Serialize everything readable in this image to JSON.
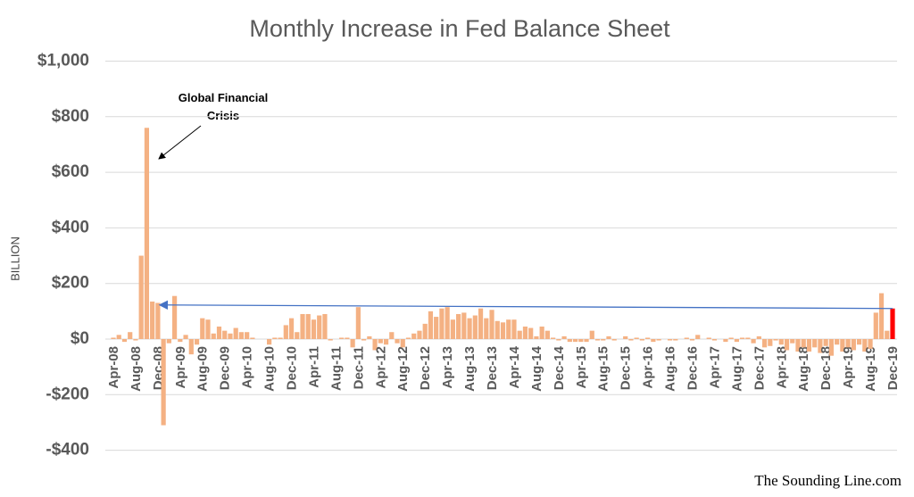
{
  "chart_data": {
    "type": "bar",
    "title": "Monthly Increase in Fed Balance Sheet",
    "y_label": "BILLION",
    "source": "The Sounding Line.com",
    "annotation": "Global Financial Crisis",
    "categories": [
      "Apr-08",
      null,
      null,
      null,
      "Aug-08",
      null,
      null,
      null,
      "Dec-08",
      null,
      null,
      null,
      "Apr-09",
      null,
      null,
      null,
      "Aug-09",
      null,
      null,
      null,
      "Dec-09",
      null,
      null,
      null,
      "Apr-10",
      null,
      null,
      null,
      "Aug-10",
      null,
      null,
      null,
      "Dec-10",
      null,
      null,
      null,
      "Apr-11",
      null,
      null,
      null,
      "Aug-11",
      null,
      null,
      null,
      "Dec-11",
      null,
      null,
      null,
      "Apr-12",
      null,
      null,
      null,
      "Aug-12",
      null,
      null,
      null,
      "Dec-12",
      null,
      null,
      null,
      "Apr-13",
      null,
      null,
      null,
      "Aug-13",
      null,
      null,
      null,
      "Dec-13",
      null,
      null,
      null,
      "Apr-14",
      null,
      null,
      null,
      "Aug-14",
      null,
      null,
      null,
      "Dec-14",
      null,
      null,
      null,
      "Apr-15",
      null,
      null,
      null,
      "Aug-15",
      null,
      null,
      null,
      "Dec-15",
      null,
      null,
      null,
      "Apr-16",
      null,
      null,
      null,
      "Aug-16",
      null,
      null,
      null,
      "Dec-16",
      null,
      null,
      null,
      "Apr-17",
      null,
      null,
      null,
      "Aug-17",
      null,
      null,
      null,
      "Dec-17",
      null,
      null,
      null,
      "Apr-18",
      null,
      null,
      null,
      "Aug-18",
      null,
      null,
      null,
      "Dec-18",
      null,
      null,
      null,
      "Apr-19",
      null,
      null,
      null,
      "Aug-19",
      null,
      null,
      null,
      "Dec-19"
    ],
    "values": [
      5,
      15,
      -10,
      25,
      -5,
      300,
      760,
      135,
      130,
      -310,
      -15,
      155,
      -10,
      15,
      -55,
      -20,
      75,
      70,
      20,
      45,
      30,
      20,
      40,
      25,
      25,
      5,
      0,
      0,
      -20,
      5,
      5,
      50,
      75,
      25,
      90,
      90,
      70,
      85,
      90,
      -5,
      0,
      5,
      5,
      -30,
      115,
      -5,
      10,
      -40,
      -15,
      -20,
      25,
      -15,
      -30,
      5,
      20,
      30,
      55,
      100,
      80,
      110,
      115,
      70,
      90,
      95,
      75,
      85,
      110,
      75,
      105,
      65,
      60,
      70,
      70,
      30,
      45,
      40,
      10,
      45,
      30,
      5,
      -5,
      10,
      -10,
      -10,
      -10,
      -10,
      30,
      -5,
      -5,
      10,
      -5,
      0,
      10,
      -5,
      5,
      -5,
      5,
      -10,
      -5,
      0,
      -5,
      -5,
      0,
      5,
      -5,
      15,
      0,
      5,
      -5,
      0,
      -10,
      5,
      -10,
      5,
      5,
      -15,
      10,
      -30,
      -25,
      -5,
      -20,
      -40,
      -15,
      -45,
      -30,
      -45,
      -30,
      -50,
      -25,
      -60,
      -20,
      -45,
      -30,
      -40,
      -20,
      -45,
      -35,
      95,
      165,
      30,
      110
    ],
    "color": "#f4b183",
    "highlight_color": "#ff0000",
    "highlight_category": "Dec-19",
    "ylim": [
      -400,
      1000
    ],
    "yticks": [
      {
        "value": -400,
        "label": "-$400"
      },
      {
        "value": -200,
        "label": "-$200"
      },
      {
        "value": 0,
        "label": "$0"
      },
      {
        "value": 200,
        "label": "$200"
      },
      {
        "value": 400,
        "label": "$400"
      },
      {
        "value": 600,
        "label": "$600"
      },
      {
        "value": 800,
        "label": "$800"
      },
      {
        "value": 1000,
        "label": "$1,000"
      }
    ],
    "grid": true
  }
}
